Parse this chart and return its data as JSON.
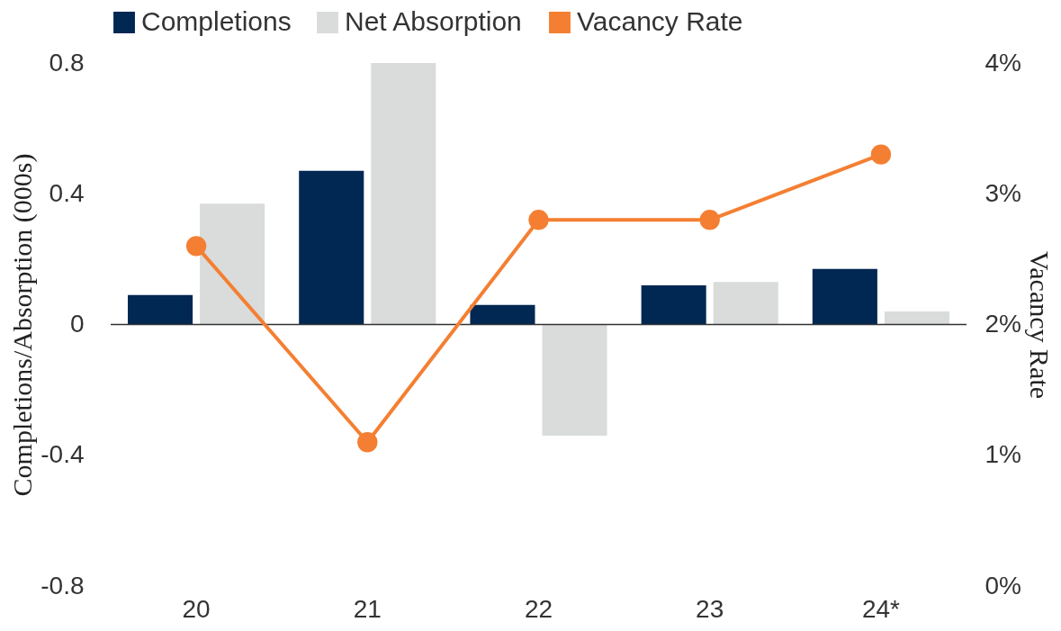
{
  "chart_data": {
    "type": "bar",
    "categories": [
      "20",
      "21",
      "22",
      "23",
      "24*"
    ],
    "series": [
      {
        "name": "Completions",
        "color": "#012753",
        "values": [
          0.09,
          0.47,
          0.06,
          0.12,
          0.17
        ]
      },
      {
        "name": "Net Absorption",
        "color": "#d9dcdb",
        "values": [
          0.37,
          0.8,
          -0.34,
          0.13,
          0.04
        ]
      },
      {
        "name": "Vacancy Rate",
        "color": "#f47f32",
        "type": "line",
        "axis": "y2",
        "values": [
          2.6,
          1.1,
          2.8,
          2.8,
          3.3
        ]
      }
    ],
    "ylabel": "Completions/Absorption (000s)",
    "y2label": "Vacancy Rate",
    "ylim": [
      -0.8,
      0.8
    ],
    "yticks": [
      -0.8,
      -0.4,
      0,
      0.4,
      0.8
    ],
    "y2lim": [
      0,
      4
    ],
    "y2ticks": [
      {
        "value": 0,
        "label": "0%"
      },
      {
        "value": 1,
        "label": "1%"
      },
      {
        "value": 2,
        "label": "2%"
      },
      {
        "value": 3,
        "label": "3%"
      },
      {
        "value": 4,
        "label": "4%"
      }
    ],
    "ref_lines": [
      {
        "axis": "y",
        "value": 0,
        "label": null,
        "color": "#333333"
      }
    ],
    "marker": "circle",
    "legend": "top",
    "grid": false
  }
}
